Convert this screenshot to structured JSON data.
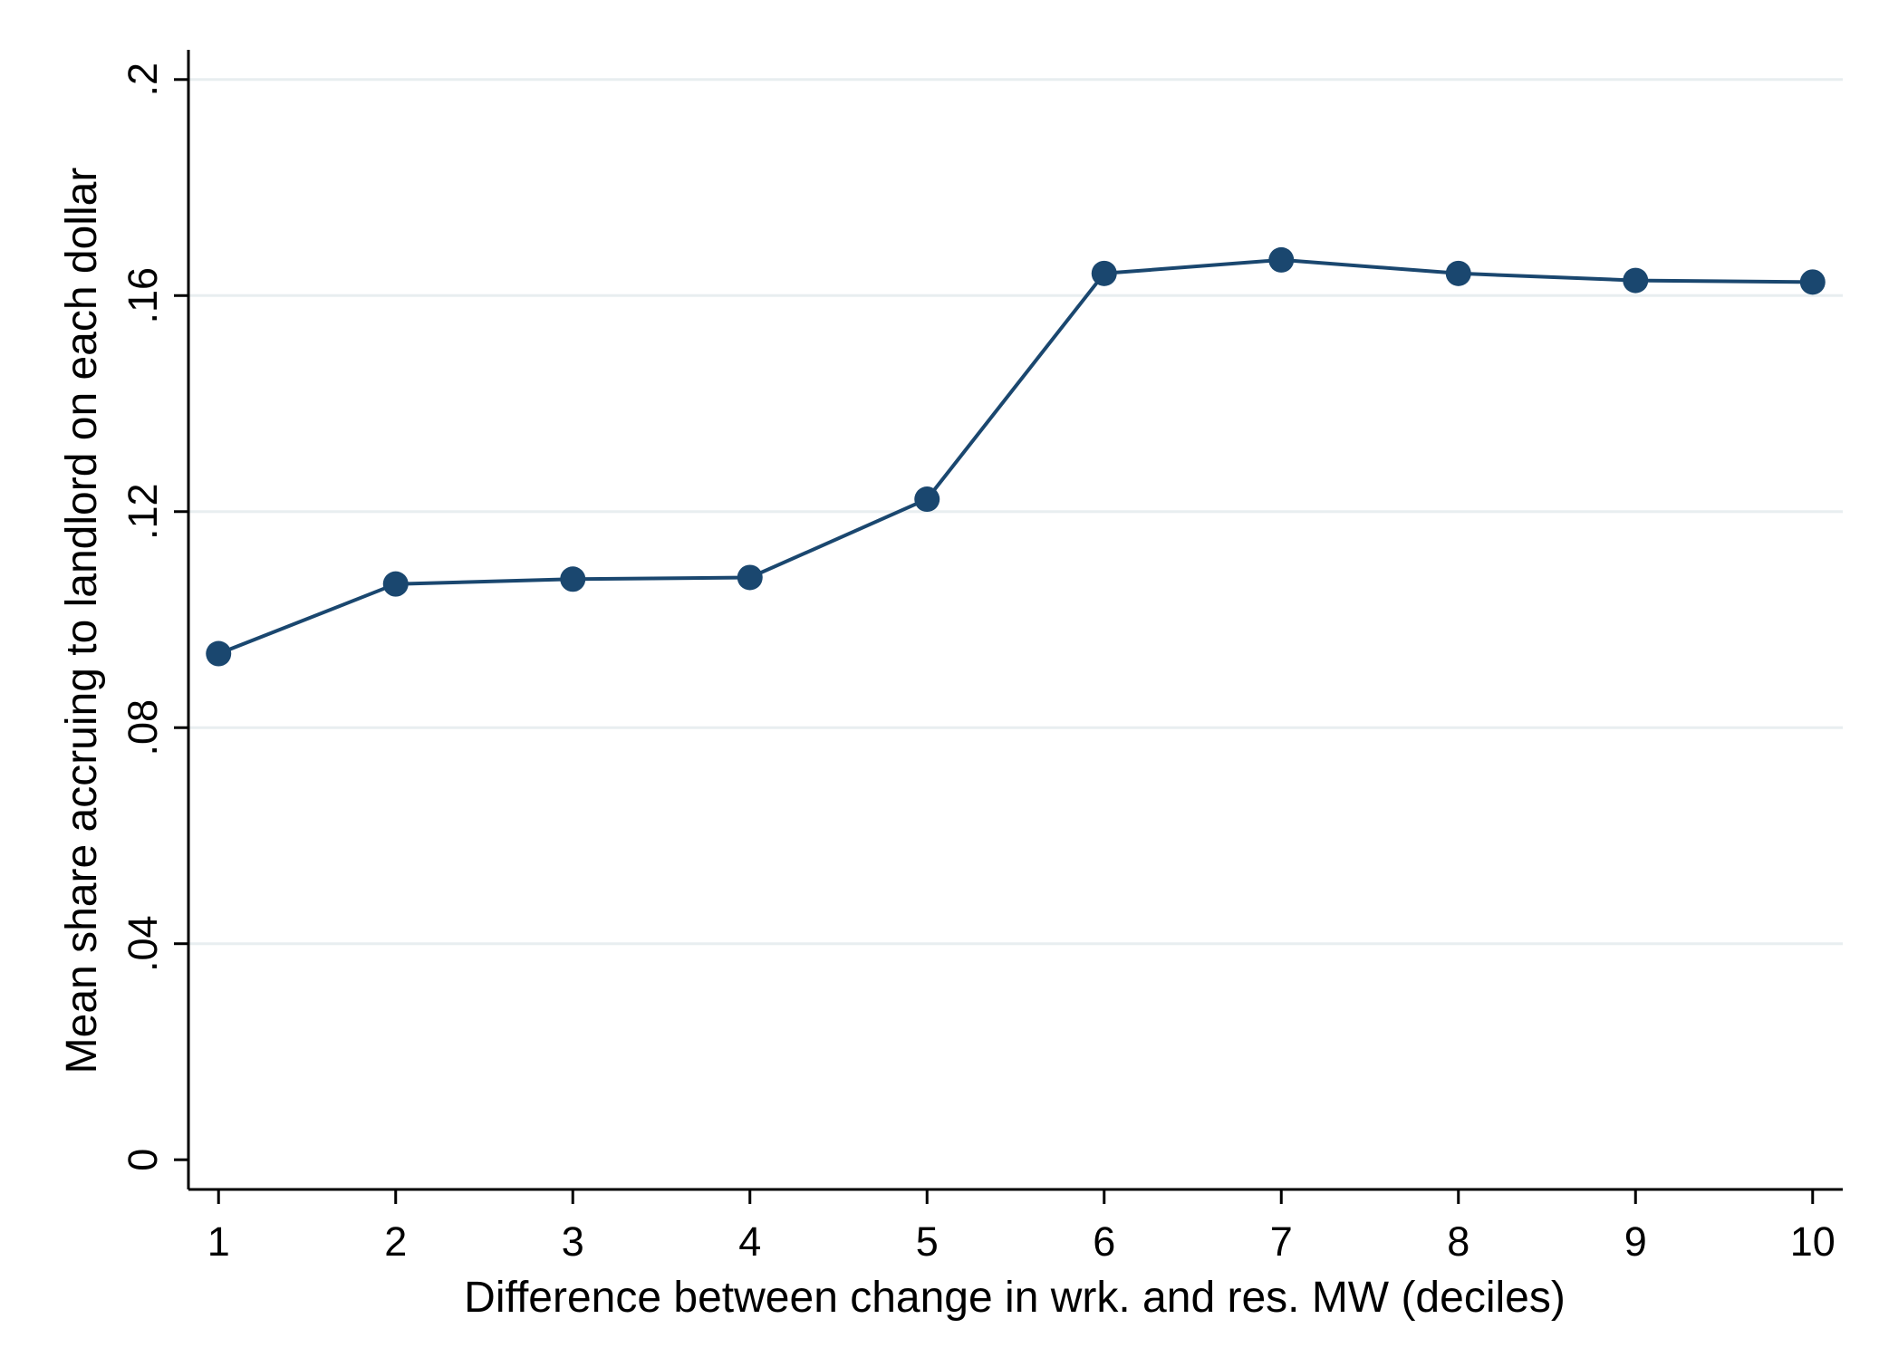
{
  "chart_data": {
    "type": "line",
    "title": "",
    "xlabel": "Difference between change in wrk. and res. MW (deciles)",
    "ylabel": "Mean share accruing to landlord on each dollar",
    "x": [
      1,
      2,
      3,
      4,
      5,
      6,
      7,
      8,
      9,
      10
    ],
    "x_tick_labels": [
      "1",
      "2",
      "3",
      "4",
      "5",
      "6",
      "7",
      "8",
      "9",
      "10"
    ],
    "y_ticks": [
      0,
      0.04,
      0.08,
      0.12,
      0.16,
      0.2
    ],
    "y_tick_labels": [
      "0",
      ".04",
      ".08",
      ".12",
      ".16",
      ".2"
    ],
    "xlim": [
      0.83,
      10.17
    ],
    "ylim": [
      -0.0055,
      0.2055
    ],
    "grid": true,
    "legend": "none",
    "series": [
      {
        "values": [
          0.0937,
          0.1066,
          0.1075,
          0.1078,
          0.1223,
          0.1641,
          0.1666,
          0.1641,
          0.1628,
          0.1625
        ],
        "color": "#1a476f",
        "marker": "circle"
      }
    ]
  }
}
